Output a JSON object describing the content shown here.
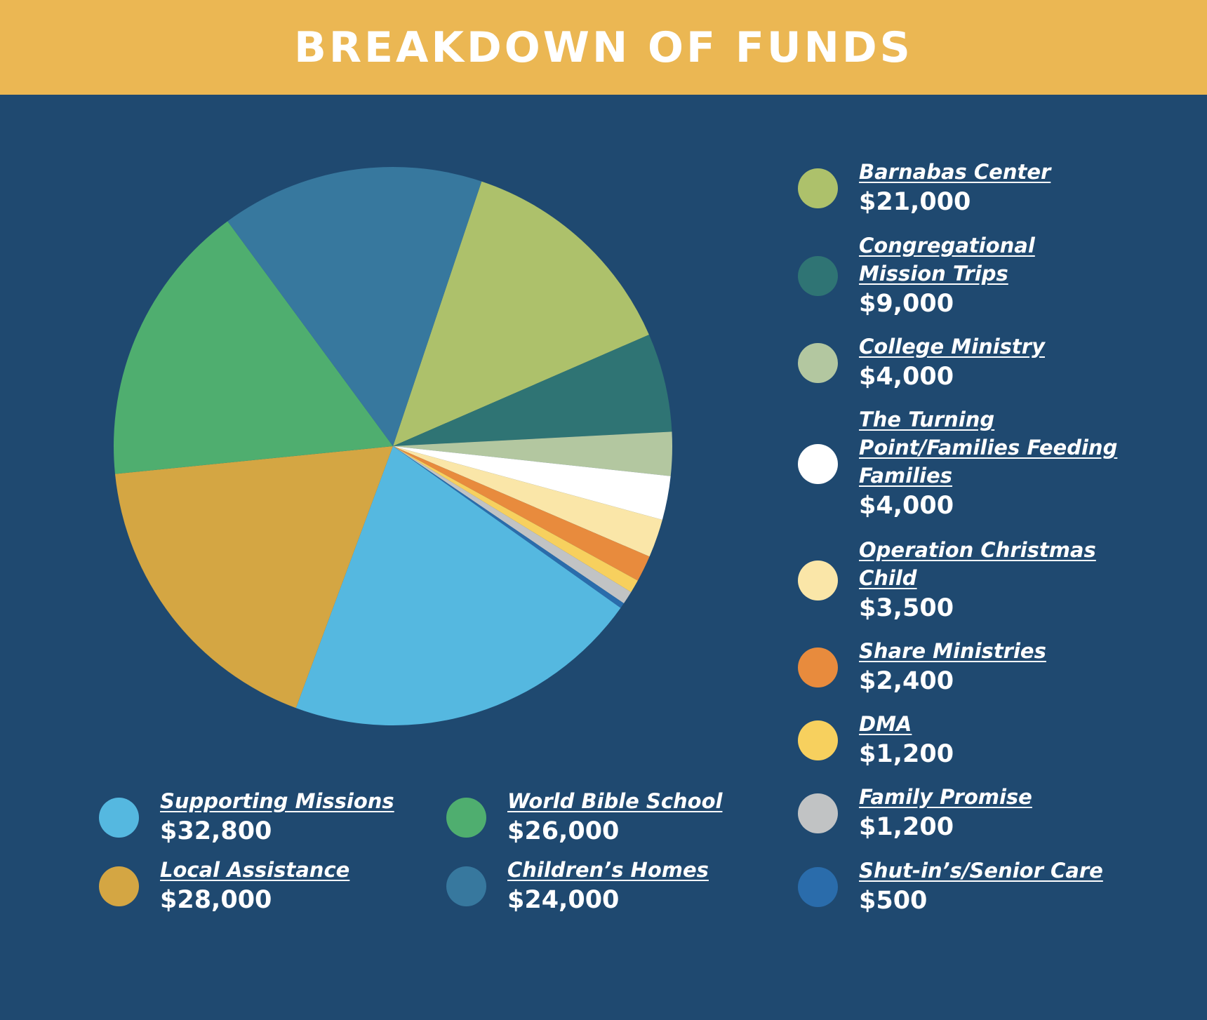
{
  "header": {
    "title": "BREAKDOWN OF FUNDS"
  },
  "chart_data": {
    "type": "pie",
    "title": "BREAKDOWN OF FUNDS",
    "legend": "right-and-bottom",
    "slices": [
      {
        "label": "Barnabas Center",
        "value": 21000,
        "display": "$21,000",
        "color": "#adc16b"
      },
      {
        "label": "Congregational Mission Trips",
        "value": 9000,
        "display": "$9,000",
        "color": "#2f7474"
      },
      {
        "label": "College Ministry",
        "value": 4000,
        "display": "$4,000",
        "color": "#b3c7a0"
      },
      {
        "label": "The Turning Point/Families Feeding Families",
        "value": 4000,
        "display": "$4,000",
        "color": "#ffffff"
      },
      {
        "label": "Operation Christmas Child",
        "value": 3500,
        "display": "$3,500",
        "color": "#fae6a8"
      },
      {
        "label": "Share Ministries",
        "value": 2400,
        "display": "$2,400",
        "color": "#e88b3d"
      },
      {
        "label": "DMA",
        "value": 1200,
        "display": "$1,200",
        "color": "#f7d05e"
      },
      {
        "label": "Family Promise",
        "value": 1200,
        "display": "$1,200",
        "color": "#c1c3c4"
      },
      {
        "label": "Shut-in’s/Senior Care",
        "value": 500,
        "display": "$500",
        "color": "#2a6cab"
      },
      {
        "label": "Supporting Missions",
        "value": 32800,
        "display": "$32,800",
        "color": "#55b8e0"
      },
      {
        "label": "Local Assistance",
        "value": 28000,
        "display": "$28,000",
        "color": "#d4a643"
      },
      {
        "label": "World Bible School",
        "value": 26000,
        "display": "$26,000",
        "color": "#4fae6f"
      },
      {
        "label": "Children’s Homes",
        "value": 24000,
        "display": "$24,000",
        "color": "#37789e"
      }
    ]
  },
  "legend_labels": {
    "barnabas_lines": [
      "Barnabas Center"
    ],
    "congregational_lines": [
      "Congregational",
      "Mission Trips"
    ],
    "college_lines": [
      "College Ministry"
    ],
    "turning_lines": [
      "The Turning",
      "Point/Families Feeding",
      "Families"
    ],
    "occ_lines": [
      "Operation Christmas",
      "Child"
    ],
    "share_lines": [
      "Share Ministries"
    ],
    "dma_lines": [
      "DMA"
    ],
    "family_lines": [
      "Family Promise"
    ],
    "shutin_lines": [
      "Shut-in’s/Senior Care"
    ],
    "supporting_lines": [
      "Supporting Missions"
    ],
    "local_lines": [
      "Local Assistance"
    ],
    "wbs_lines": [
      "World Bible School"
    ],
    "childrens_lines": [
      "Children’s Homes"
    ]
  }
}
